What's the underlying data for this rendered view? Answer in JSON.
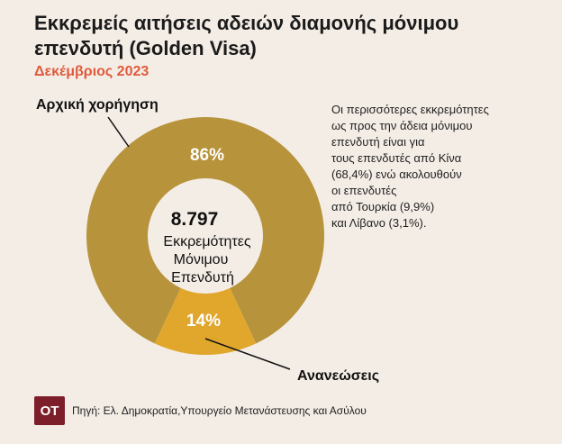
{
  "header": {
    "title": "Εκκρεμείς αιτήσεις αδειών διαμονής μόνιμου επενδυτή (Golden Visa)",
    "subtitle": "Δεκέμβριος 2023"
  },
  "note": "Οι περισσότερες εκκρεμότητες\nως προς την άδεια μόνιμου\nεπενδυτή είναι για\nτους επενδυτές από Κίνα\n(68,4%) ενώ ακολουθούν\nοι επενδυτές\nαπό Τουρκία (9,9%)\nκαι Λίβανο (3,1%).",
  "chart_data": {
    "type": "pie",
    "title": "Εκκρεμείς αιτήσεις αδειών διαμονής μόνιμου επενδυτή (Golden Visa)",
    "subtitle": "Δεκέμβριος 2023",
    "categories": [
      "Αρχική χορήγηση",
      "Ανανεώσεις"
    ],
    "values": [
      86,
      14
    ],
    "value_labels": [
      "86%",
      "14%"
    ],
    "colors": [
      "#b7933b",
      "#e1a72d"
    ],
    "center_value": "8.797",
    "center_label": [
      "Εκκρεμότητες",
      "Μόνιμου",
      "Επενδυτή"
    ],
    "legend": "none"
  },
  "footer": {
    "logo": "OT",
    "source": "Πηγή: Ελ. Δημοκρατία,Υπουργείο Μετανάστευσης και Ασύλου"
  }
}
